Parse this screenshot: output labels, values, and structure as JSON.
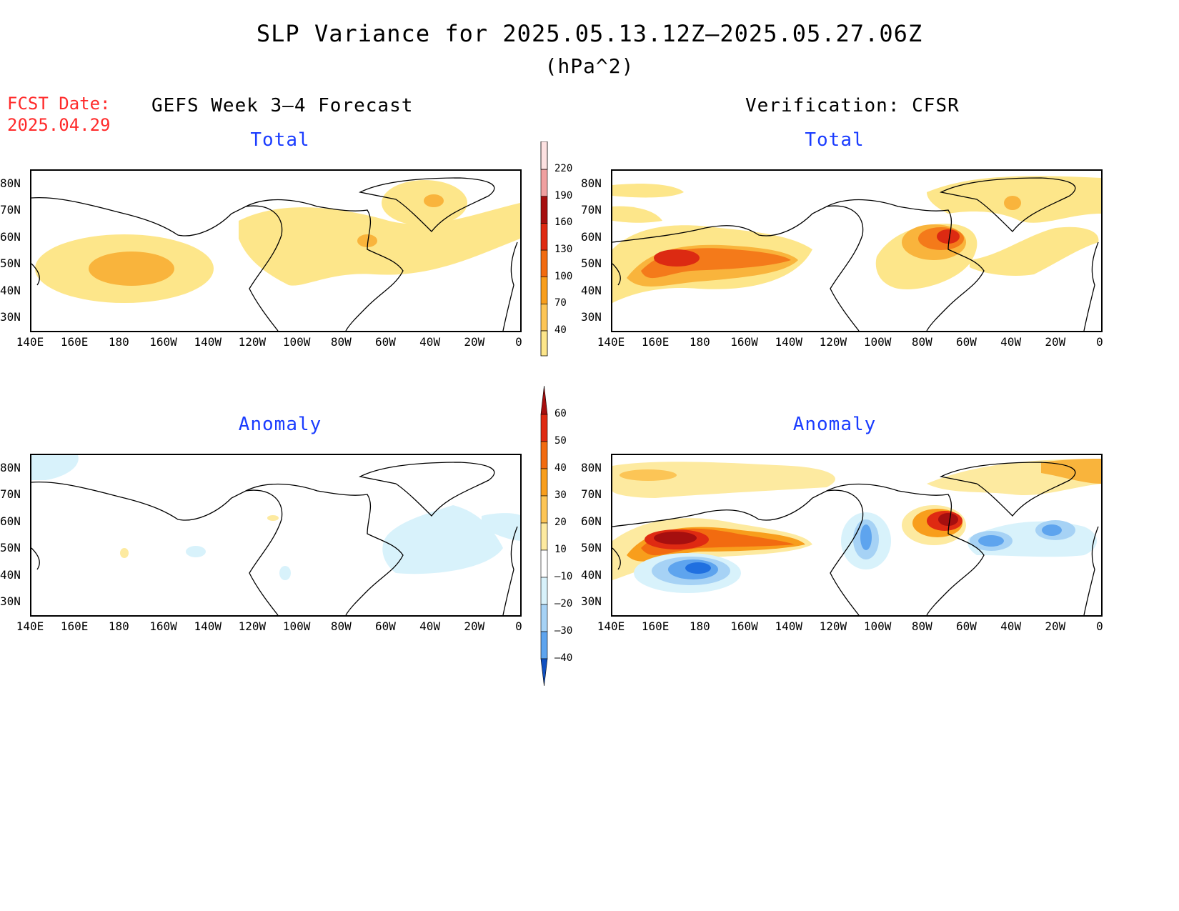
{
  "header": {
    "title": "SLP Variance for 2025.05.13.12Z–2025.05.27.06Z",
    "units": "(hPa^2)",
    "fcst_label": "FCST Date:",
    "fcst_date": "2025.04.29",
    "left_heading": "GEFS Week 3–4 Forecast",
    "right_heading": "Verification: CFSR"
  },
  "panels": {
    "top_left_title": "Total",
    "top_right_title": "Total",
    "bottom_left_title": "Anomaly",
    "bottom_right_title": "Anomaly"
  },
  "axes": {
    "lat_labels": [
      "80N",
      "70N",
      "60N",
      "50N",
      "40N",
      "30N"
    ],
    "lon_labels": [
      "140E",
      "160E",
      "180",
      "160W",
      "140W",
      "120W",
      "100W",
      "80W",
      "60W",
      "40W",
      "20W",
      "0"
    ]
  },
  "colorbars": {
    "total": {
      "levels": [
        "40",
        "70",
        "100",
        "130",
        "160",
        "190",
        "220"
      ],
      "colors": [
        "#fde68a",
        "#fcc556",
        "#f89e1c",
        "#f26b10",
        "#df2a12",
        "#a60f0f",
        "#f0a0a0",
        "#fde1e1"
      ]
    },
    "anomaly": {
      "levels": [
        "60",
        "50",
        "40",
        "30",
        "20",
        "10",
        "–10",
        "–20",
        "–30",
        "–40"
      ],
      "colors_top_down": [
        "#a60f0f",
        "#df2a12",
        "#f26b10",
        "#f89e1c",
        "#fcc556",
        "#fdeaa0",
        "#ffffff",
        "#d8f2fb",
        "#a6d2f5",
        "#5ea4ee",
        "#2070e0",
        "#1050c0"
      ]
    }
  },
  "palette": {
    "total_c1": "#fde68a",
    "total_c2": "#f9b43c",
    "total_c3": "#f47a1a",
    "total_c4": "#dc2a12",
    "anom_p1": "#fdeaa0",
    "anom_p2": "#fcc556",
    "anom_p3": "#f89e1c",
    "anom_p4": "#f26b10",
    "anom_p5": "#df2a12",
    "anom_p6": "#a60f0f",
    "anom_n1": "#d8f2fb",
    "anom_n2": "#a6d2f5",
    "anom_n3": "#5ea4ee",
    "anom_n4": "#2070e0"
  }
}
